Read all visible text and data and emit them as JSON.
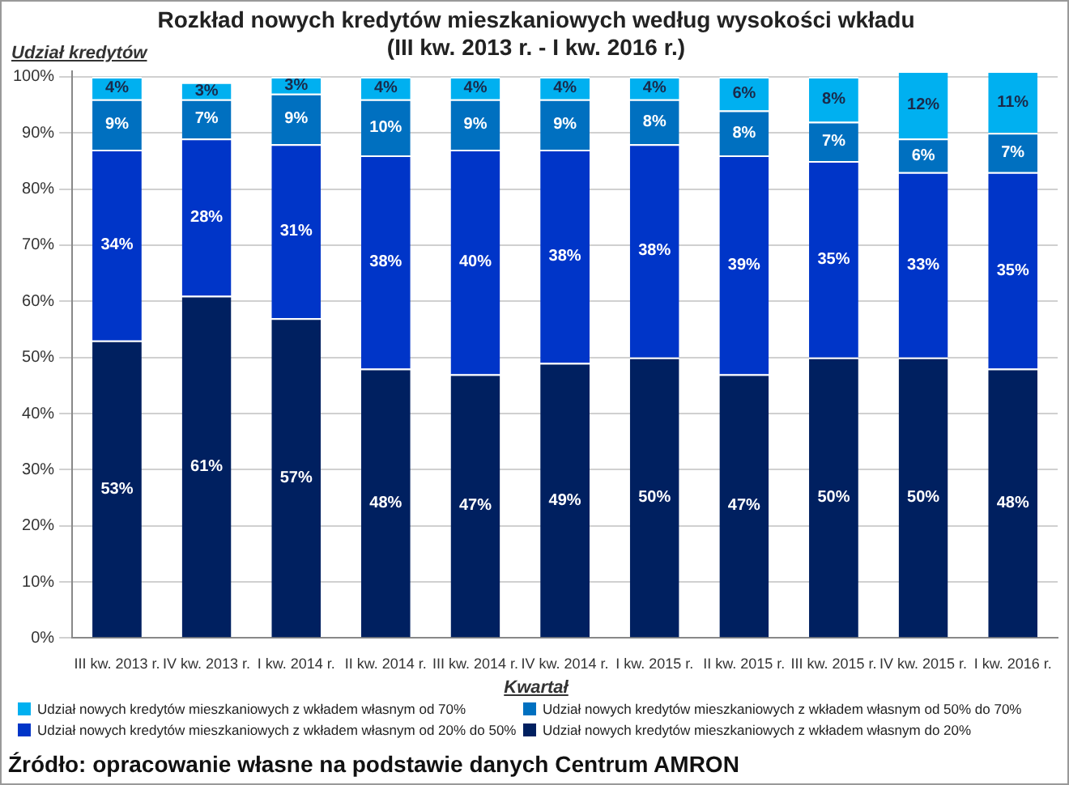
{
  "chart_data": {
    "type": "bar",
    "stacked": true,
    "title": "Rozkład nowych kredytów mieszkaniowych według wysokości wkładu",
    "subtitle": "(III kw. 2013 r. - I kw. 2016 r.)",
    "ylabel": "Udział kredytów",
    "xlabel": "Kwartał",
    "categories": [
      "III kw. 2013 r.",
      "IV kw. 2013 r.",
      "I kw. 2014 r.",
      "II kw. 2014 r.",
      "III kw. 2014 r.",
      "IV kw. 2014 r.",
      "I kw. 2015 r.",
      "II kw. 2015 r.",
      "III kw. 2015 r.",
      "IV kw. 2015 r.",
      "I kw. 2016 r."
    ],
    "series": [
      {
        "name": "Udział nowych kredytów mieszkaniowych z wkładem własnym do 20%",
        "color": "#002060",
        "values": [
          53,
          61,
          57,
          48,
          47,
          49,
          50,
          47,
          50,
          50,
          48
        ],
        "value_labels": [
          "53%",
          "61%",
          "57%",
          "48%",
          "47%",
          "49%",
          "50%",
          "47%",
          "50%",
          "50%",
          "48%"
        ]
      },
      {
        "name": "Udział nowych kredytów mieszkaniowych z wkładem własnym od 20% do 50%",
        "color": "#0035c8",
        "values": [
          34,
          28,
          31,
          38,
          40,
          38,
          38,
          39,
          35,
          33,
          35
        ],
        "value_labels": [
          "34%",
          "28%",
          "31%",
          "38%",
          "40%",
          "38%",
          "38%",
          "39%",
          "35%",
          "33%",
          "35%"
        ]
      },
      {
        "name": "Udział nowych kredytów mieszkaniowych z wkładem własnym od 50% do 70%",
        "color": "#0070c0",
        "values": [
          9,
          7,
          9,
          10,
          9,
          9,
          8,
          8,
          7,
          6,
          7
        ],
        "value_labels": [
          "9%",
          "7%",
          "9%",
          "10%",
          "9%",
          "9%",
          "8%",
          "8%",
          "7%",
          "6%",
          "7%"
        ]
      },
      {
        "name": "Udział nowych kredytów mieszkaniowych z wkładem własnym od 70%",
        "color": "#00b0f0",
        "values": [
          4,
          3,
          3,
          4,
          4,
          4,
          4,
          6,
          8,
          12,
          11
        ],
        "value_labels": [
          "4%",
          "3%",
          "3%",
          "4%",
          "4%",
          "4%",
          "4%",
          "6%",
          "8%",
          "12%",
          "11%"
        ]
      }
    ],
    "ylim": [
      0,
      101
    ],
    "yticks": [
      {
        "value": 0,
        "label": "0%"
      },
      {
        "value": 10,
        "label": "10%"
      },
      {
        "value": 20,
        "label": "20%"
      },
      {
        "value": 30,
        "label": "30%"
      },
      {
        "value": 40,
        "label": "40%"
      },
      {
        "value": 50,
        "label": "50%"
      },
      {
        "value": 60,
        "label": "60%"
      },
      {
        "value": 70,
        "label": "70%"
      },
      {
        "value": 80,
        "label": "80%"
      },
      {
        "value": 90,
        "label": "90%"
      },
      {
        "value": 100,
        "label": "100%"
      }
    ],
    "grid": "y",
    "legend": "bottom",
    "annotations": [
      "Źródło: opracowanie własne na podstawie danych Centrum AMRON"
    ]
  }
}
